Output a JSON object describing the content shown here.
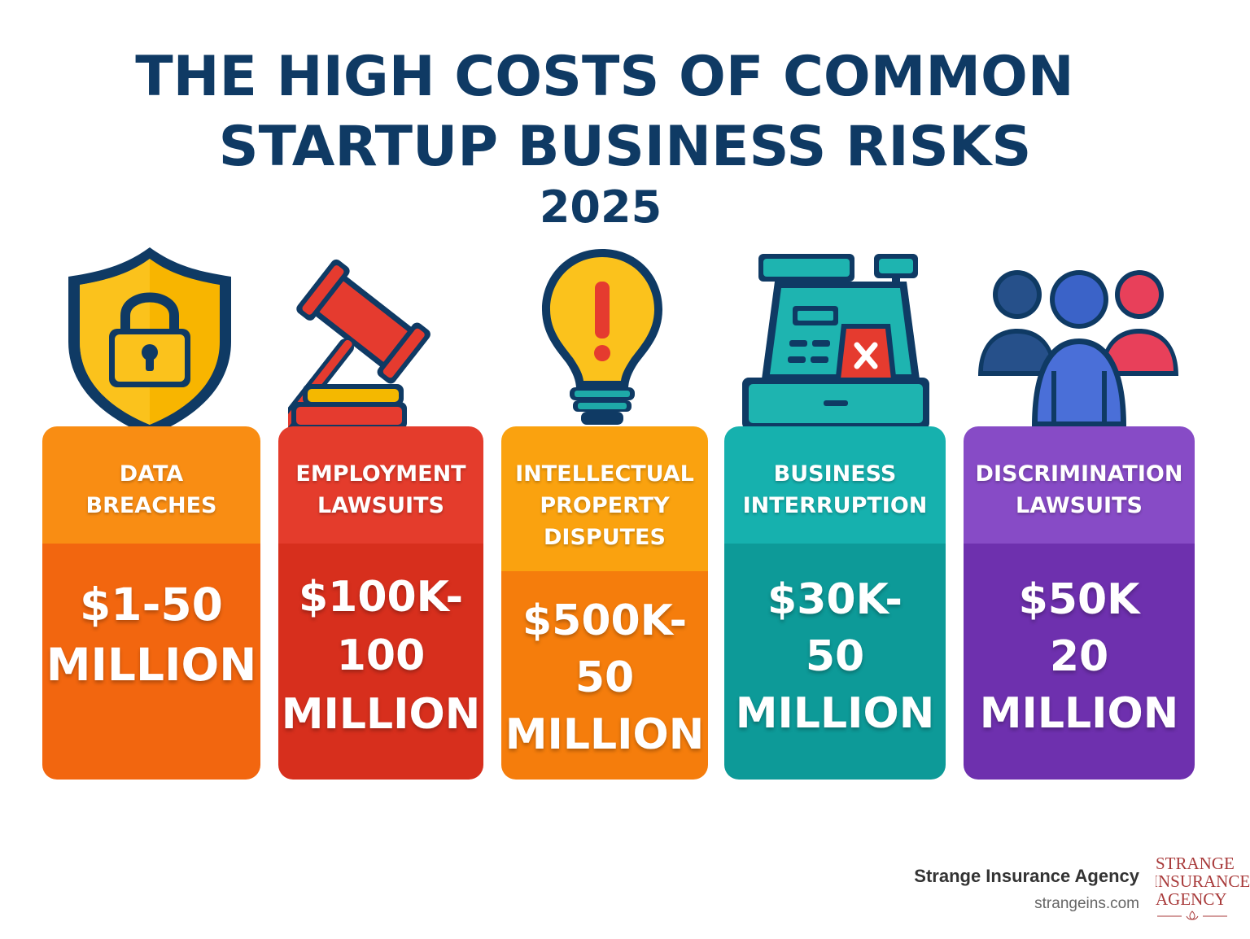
{
  "title": {
    "line1": "THE HIGH COSTS OF COMMON",
    "line2": "STARTUP BUSINESS RISKS",
    "year": "2025"
  },
  "cards": [
    {
      "label": "DATA\nBREACHES",
      "cost": "$1-50\nMILLION",
      "top_color": "#f98d13",
      "bottom_color": "#f2660f",
      "icon": "shield-lock-icon"
    },
    {
      "label": "EMPLOYMENT\nLAWSUITS",
      "cost": "$100K-\n100\nMILLION",
      "top_color": "#e43c2c",
      "bottom_color": "#d72f1d",
      "icon": "gavel-icon"
    },
    {
      "label": "INTELLECTUAL\nPROPERTY\nDISPUTES",
      "cost": "$500K-\n50\nMILLION",
      "top_color": "#faa20f",
      "bottom_color": "#f57d0c",
      "icon": "lightbulb-alert-icon"
    },
    {
      "label": "BUSINESS\nINTERRUPTION",
      "cost": "$30K-\n50\nMILLION",
      "top_color": "#16b1ae",
      "bottom_color": "#0d9a98",
      "icon": "cash-register-icon"
    },
    {
      "label": "DISCRIMINATION\nLAWSUITS",
      "cost": "$50K\n20\nMILLION",
      "top_color": "#874bc6",
      "bottom_color": "#6e30ae",
      "icon": "people-group-icon"
    }
  ],
  "footer": {
    "company": "Strange Insurance Agency",
    "url": "strangeins.com",
    "logo_lines": [
      "STRANGE",
      "INSURANCE",
      "AGENCY"
    ]
  }
}
